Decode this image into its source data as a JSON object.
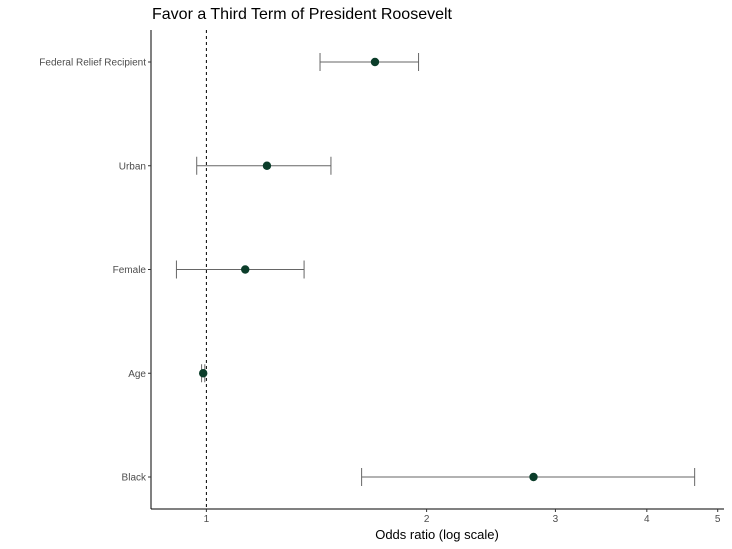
{
  "chart_data": {
    "type": "scatter",
    "title": "Favor a Third Term of President Roosevelt",
    "xlabel": "Odds ratio (log scale)",
    "ylabel": "",
    "x_scale": "log",
    "xlim": [
      0.84,
      5.1
    ],
    "x_ticks": [
      1,
      2,
      3,
      4,
      5
    ],
    "reference_line": 1,
    "grid": false,
    "marker_color": "#0b3d2a",
    "errorbar_color": "#666666",
    "categories": [
      "Federal Relief Recipient",
      "Urban",
      "Female",
      "Age",
      "Black"
    ],
    "series": [
      {
        "estimates": [
          1.7,
          1.21,
          1.13,
          0.99,
          2.8
        ],
        "lower": [
          1.43,
          0.97,
          0.91,
          0.985,
          1.63
        ],
        "upper": [
          1.95,
          1.48,
          1.36,
          0.995,
          4.65
        ]
      }
    ]
  }
}
